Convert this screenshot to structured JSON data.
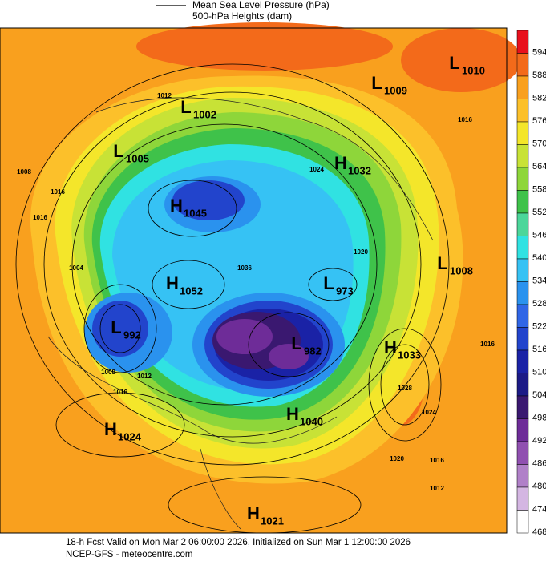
{
  "legend": {
    "mslp": "Mean Sea Level Pressure (hPa)",
    "heights": "500-hPa Heights (dam)"
  },
  "colorbar": {
    "levels": [
      594,
      588,
      582,
      576,
      570,
      564,
      558,
      552,
      546,
      540,
      534,
      528,
      522,
      516,
      510,
      504,
      498,
      492,
      486,
      480,
      474,
      468
    ],
    "colors": [
      "#e8101c",
      "#f36a1a",
      "#f9a01e",
      "#fcc02a",
      "#f4e62a",
      "#c8e236",
      "#8ed63a",
      "#3fc24a",
      "#4cd69a",
      "#30e2e2",
      "#36c2f4",
      "#2a92ee",
      "#3066e6",
      "#2244cc",
      "#1a22a6",
      "#1c1a86",
      "#3a1870",
      "#6e2c98",
      "#9050b0",
      "#b080c8",
      "#d4b6e2",
      "#ffffff"
    ]
  },
  "centers": [
    {
      "letter": "L",
      "value": 1010
    },
    {
      "letter": "L",
      "value": 1009
    },
    {
      "letter": "L",
      "value": 1002
    },
    {
      "letter": "L",
      "value": 1005
    },
    {
      "letter": "H",
      "value": 1032
    },
    {
      "letter": "H",
      "value": 1045
    },
    {
      "letter": "L",
      "value": 1008
    },
    {
      "letter": "H",
      "value": 1052
    },
    {
      "letter": "L",
      "value": 973
    },
    {
      "letter": "L",
      "value": 992
    },
    {
      "letter": "L",
      "value": 982
    },
    {
      "letter": "H",
      "value": 1033
    },
    {
      "letter": "H",
      "value": 1040
    },
    {
      "letter": "H",
      "value": 1024
    },
    {
      "letter": "H",
      "value": 1021
    }
  ],
  "contour_labels": [
    1012,
    1016,
    1008,
    1016,
    1016,
    1004,
    1008,
    1012,
    1016,
    1016,
    1028,
    1024,
    1020,
    1016,
    1012,
    1024,
    1036,
    1020
  ],
  "footer": {
    "line1": "18-h Fcst Valid on Mon Mar  2 06:00:00 2026, Initialized on Sun Mar  1 12:00:00 2026",
    "line2": "NCEP-GFS - meteocentre.com"
  }
}
